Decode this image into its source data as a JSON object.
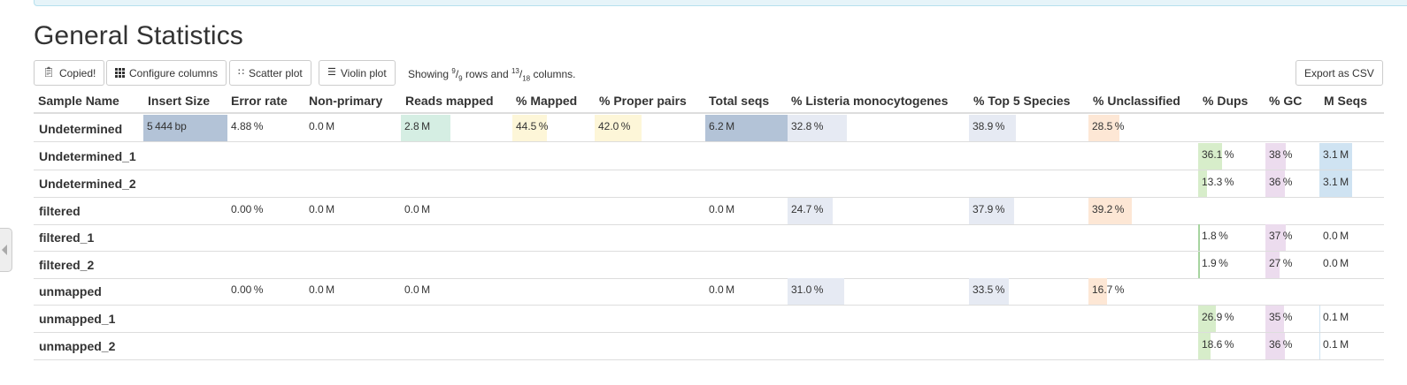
{
  "title": "General Statistics",
  "toolbar": {
    "copied_label": "Copied!",
    "configure_label": "Configure columns",
    "scatter_label": "Scatter plot",
    "violin_label": "Violin plot",
    "export_label": "Export as CSV",
    "showing_prefix": "Showing ",
    "rows_shown": "9",
    "rows_total": "9",
    "rows_mid": " rows and ",
    "cols_shown": "13",
    "cols_total": "18",
    "cols_suffix": " columns."
  },
  "colors": {
    "insert_size": "#b3c3d7",
    "reads_mapped": "#d5eee3",
    "mapped_pct": "#fdf6d8",
    "proper_pairs": "#fdf6d8",
    "total_seqs": "#b3c3d7",
    "listeria": "#e6eaf3",
    "top5": "#e6eaf3",
    "unclassified": "#fde7d5",
    "dups": "#d7edca",
    "gc": "#ecdcee",
    "mseqs": "#cfe3f2"
  },
  "columns": [
    {
      "key": "name",
      "label": "Sample Name"
    },
    {
      "key": "insert_size",
      "label": "Insert Size"
    },
    {
      "key": "error_rate",
      "label": "Error rate"
    },
    {
      "key": "non_primary",
      "label": "Non-primary"
    },
    {
      "key": "reads_mapped",
      "label": "Reads mapped"
    },
    {
      "key": "mapped_pct",
      "label": "% Mapped"
    },
    {
      "key": "proper_pairs",
      "label": "% Proper pairs"
    },
    {
      "key": "total_seqs",
      "label": "Total seqs"
    },
    {
      "key": "listeria",
      "label": "% Listeria monocytogenes"
    },
    {
      "key": "top5",
      "label": "% Top 5 Species"
    },
    {
      "key": "unclassified",
      "label": "% Unclassified"
    },
    {
      "key": "dups",
      "label": "% Dups"
    },
    {
      "key": "gc",
      "label": "% GC"
    },
    {
      "key": "mseqs",
      "label": "M Seqs"
    }
  ],
  "rows": [
    {
      "name": "Undetermined",
      "insert_size": {
        "text": "5 444 bp",
        "frac": 1.0
      },
      "error_rate": {
        "text": "4.88 %"
      },
      "non_primary": {
        "text": "0.0 M"
      },
      "reads_mapped": {
        "text": "2.8 M",
        "frac": 0.445
      },
      "mapped_pct": {
        "text": "44.5 %",
        "frac": 0.445
      },
      "proper_pairs": {
        "text": "42.0 %",
        "frac": 0.42
      },
      "total_seqs": {
        "text": "6.2 M",
        "frac": 1.0
      },
      "listeria": {
        "text": "32.8 %",
        "frac": 0.328
      },
      "top5": {
        "text": "38.9 %",
        "frac": 0.389
      },
      "unclassified": {
        "text": "28.5 %",
        "frac": 0.285
      }
    },
    {
      "name": "Undetermined_1",
      "dups": {
        "text": "36.1 %",
        "frac": 0.361
      },
      "gc": {
        "text": "38 %",
        "frac": 0.38
      },
      "mseqs": {
        "text": "3.1 M",
        "frac": 1.0
      }
    },
    {
      "name": "Undetermined_2",
      "dups": {
        "text": "13.3 %",
        "frac": 0.133
      },
      "gc": {
        "text": "36 %",
        "frac": 0.36
      },
      "mseqs": {
        "text": "3.1 M",
        "frac": 1.0
      }
    },
    {
      "name": "filtered",
      "error_rate": {
        "text": "0.00 %"
      },
      "non_primary": {
        "text": "0.0 M"
      },
      "reads_mapped": {
        "text": "0.0 M",
        "frac": 0.0
      },
      "total_seqs": {
        "text": "0.0 M",
        "frac": 0.0
      },
      "listeria": {
        "text": "24.7 %",
        "frac": 0.247
      },
      "top5": {
        "text": "37.9 %",
        "frac": 0.379
      },
      "unclassified": {
        "text": "39.2 %",
        "frac": 0.392
      }
    },
    {
      "name": "filtered_1",
      "dups": {
        "text": "1.8 %",
        "frac": 0.018
      },
      "gc": {
        "text": "37 %",
        "frac": 0.37
      },
      "mseqs": {
        "text": "0.0 M",
        "frac": 0.0
      }
    },
    {
      "name": "filtered_2",
      "dups": {
        "text": "1.9 %",
        "frac": 0.019
      },
      "gc": {
        "text": "27 %",
        "frac": 0.27
      },
      "mseqs": {
        "text": "0.0 M",
        "frac": 0.0
      }
    },
    {
      "name": "unmapped",
      "error_rate": {
        "text": "0.00 %"
      },
      "non_primary": {
        "text": "0.0 M"
      },
      "reads_mapped": {
        "text": "0.0 M",
        "frac": 0.0
      },
      "total_seqs": {
        "text": "0.0 M",
        "frac": 0.0
      },
      "listeria": {
        "text": "31.0 %",
        "frac": 0.31
      },
      "top5": {
        "text": "33.5 %",
        "frac": 0.335
      },
      "unclassified": {
        "text": "16.7 %",
        "frac": 0.167
      }
    },
    {
      "name": "unmapped_1",
      "dups": {
        "text": "26.9 %",
        "frac": 0.269
      },
      "gc": {
        "text": "35 %",
        "frac": 0.35
      },
      "mseqs": {
        "text": "0.1 M",
        "frac": 0.03
      }
    },
    {
      "name": "unmapped_2",
      "dups": {
        "text": "18.6 %",
        "frac": 0.186
      },
      "gc": {
        "text": "36 %",
        "frac": 0.36
      },
      "mseqs": {
        "text": "0.1 M",
        "frac": 0.03
      }
    }
  ]
}
